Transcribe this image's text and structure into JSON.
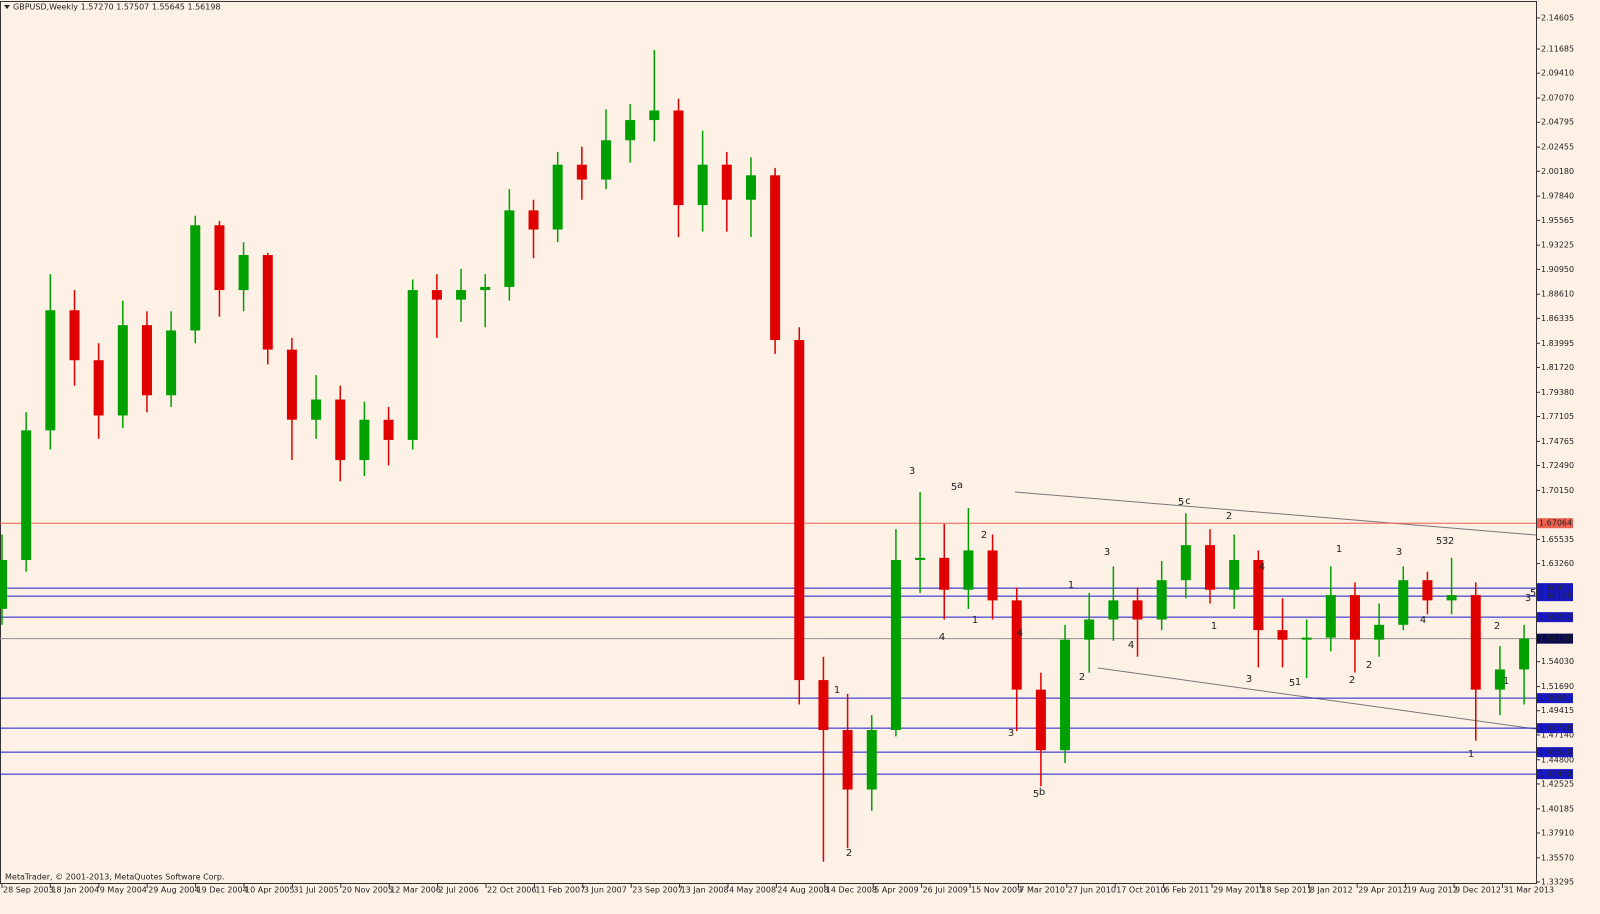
{
  "chart_data": {
    "type": "candlestick",
    "title": "GBPUSD,Weekly  1.57270 1.57507 1.55645 1.56198",
    "footer": "MetaTrader, © 2001-2013, MetaQuotes Software Corp.",
    "up_color": "#00a000",
    "down_color": "#e00000",
    "open": [
      1.59,
      1.636,
      1.758,
      1.871,
      1.824,
      1.772,
      1.857,
      1.791,
      1.852,
      1.951,
      1.89,
      1.923,
      1.834,
      1.768,
      1.787,
      1.73,
      1.768,
      1.749,
      1.89,
      1.881,
      1.89,
      1.893,
      1.965,
      1.947,
      2.008,
      1.994,
      2.031,
      2.05,
      2.059,
      1.97,
      2.008,
      1.975,
      1.998,
      1.843,
      1.523,
      1.476,
      1.42,
      1.476,
      1.636,
      1.638,
      1.608,
      1.645,
      1.598,
      1.514,
      1.457,
      1.561,
      1.58,
      1.598,
      1.58,
      1.617,
      1.65,
      1.608,
      1.636,
      1.57,
      1.561,
      1.563,
      1.603,
      1.561,
      1.575,
      1.617,
      1.598,
      1.603,
      1.514,
      1.533
    ],
    "high": [
      1.66,
      1.775,
      1.905,
      1.89,
      1.84,
      1.88,
      1.87,
      1.87,
      1.96,
      1.955,
      1.935,
      1.925,
      1.845,
      1.81,
      1.8,
      1.785,
      1.78,
      1.9,
      1.905,
      1.91,
      1.905,
      1.985,
      1.975,
      2.02,
      2.025,
      2.06,
      2.065,
      2.116,
      2.07,
      2.04,
      2.02,
      2.015,
      2.005,
      1.855,
      1.545,
      1.51,
      1.49,
      1.665,
      1.7,
      1.67,
      1.685,
      1.66,
      1.61,
      1.53,
      1.575,
      1.605,
      1.63,
      1.61,
      1.635,
      1.68,
      1.665,
      1.66,
      1.645,
      1.6,
      1.58,
      1.63,
      1.615,
      1.595,
      1.63,
      1.625,
      1.638,
      1.615,
      1.555,
      1.575
    ],
    "low": [
      1.575,
      1.625,
      1.74,
      1.8,
      1.75,
      1.76,
      1.775,
      1.78,
      1.84,
      1.865,
      1.87,
      1.82,
      1.73,
      1.75,
      1.71,
      1.715,
      1.725,
      1.74,
      1.845,
      1.86,
      1.855,
      1.88,
      1.92,
      1.935,
      1.975,
      1.985,
      2.01,
      2.03,
      1.94,
      1.945,
      1.945,
      1.94,
      1.83,
      1.5,
      1.352,
      1.365,
      1.4,
      1.47,
      1.605,
      1.58,
      1.59,
      1.58,
      1.475,
      1.423,
      1.445,
      1.53,
      1.56,
      1.545,
      1.57,
      1.6,
      1.595,
      1.59,
      1.535,
      1.535,
      1.525,
      1.55,
      1.53,
      1.545,
      1.57,
      1.585,
      1.585,
      1.466,
      1.49,
      1.5
    ],
    "close": [
      1.636,
      1.758,
      1.871,
      1.824,
      1.772,
      1.857,
      1.791,
      1.852,
      1.951,
      1.89,
      1.923,
      1.834,
      1.768,
      1.787,
      1.73,
      1.768,
      1.749,
      1.89,
      1.881,
      1.89,
      1.893,
      1.965,
      1.947,
      2.008,
      1.994,
      2.031,
      2.05,
      2.059,
      1.97,
      2.008,
      1.975,
      1.998,
      1.843,
      1.523,
      1.476,
      1.42,
      1.476,
      1.636,
      1.638,
      1.608,
      1.645,
      1.598,
      1.514,
      1.457,
      1.561,
      1.58,
      1.598,
      1.58,
      1.617,
      1.65,
      1.608,
      1.636,
      1.57,
      1.561,
      1.563,
      1.603,
      1.561,
      1.575,
      1.617,
      1.598,
      1.603,
      1.514,
      1.533,
      1.562
    ],
    "ylim": [
      1.3311,
      2.1611
    ],
    "yticks": [
      {
        "value": 2.14605,
        "label": "2.14605"
      },
      {
        "value": 2.11685,
        "label": "2.11685"
      },
      {
        "value": 2.0941,
        "label": "2.09410"
      },
      {
        "value": 2.0707,
        "label": "2.07070"
      },
      {
        "value": 2.04795,
        "label": "2.04795"
      },
      {
        "value": 2.02455,
        "label": "2.02455"
      },
      {
        "value": 2.0018,
        "label": "2.00180"
      },
      {
        "value": 1.9784,
        "label": "1.97840"
      },
      {
        "value": 1.95565,
        "label": "1.95565"
      },
      {
        "value": 1.93225,
        "label": "1.93225"
      },
      {
        "value": 1.9095,
        "label": "1.90950"
      },
      {
        "value": 1.8861,
        "label": "1.88610"
      },
      {
        "value": 1.86335,
        "label": "1.86335"
      },
      {
        "value": 1.83995,
        "label": "1.83995"
      },
      {
        "value": 1.8172,
        "label": "1.81720"
      },
      {
        "value": 1.7938,
        "label": "1.79380"
      },
      {
        "value": 1.77105,
        "label": "1.77105"
      },
      {
        "value": 1.74765,
        "label": "1.74765"
      },
      {
        "value": 1.7249,
        "label": "1.72490"
      },
      {
        "value": 1.7015,
        "label": "1.70150"
      },
      {
        "value": 1.65535,
        "label": "1.65535"
      },
      {
        "value": 1.6326,
        "label": "1.63260"
      },
      {
        "value": 1.5403,
        "label": "1.54030"
      },
      {
        "value": 1.5169,
        "label": "1.51690"
      },
      {
        "value": 1.49415,
        "label": "1.49415"
      },
      {
        "value": 1.4714,
        "label": "1.47140"
      },
      {
        "value": 1.448,
        "label": "1.44800"
      },
      {
        "value": 1.42525,
        "label": "1.42525"
      },
      {
        "value": 1.40185,
        "label": "1.40185"
      },
      {
        "value": 1.3791,
        "label": "1.37910"
      },
      {
        "value": 1.3557,
        "label": "1.35570"
      },
      {
        "value": 1.33295,
        "label": "1.33295"
      }
    ],
    "x_labels": [
      "28 Sep 2003",
      "18 Jan 2004",
      "9 May 2004",
      "29 Aug 2004",
      "19 Dec 2004",
      "10 Apr 2005",
      "31 Jul 2005",
      "20 Nov 2005",
      "12 Mar 2006",
      "2 Jul 2006",
      "22 Oct 2006",
      "11 Feb 2007",
      "3 Jun 2007",
      "23 Sep 2007",
      "13 Jan 2008",
      "4 May 2008",
      "24 Aug 2008",
      "14 Dec 2008",
      "5 Apr 2009",
      "26 Jul 2009",
      "15 Nov 2009",
      "7 Mar 2010",
      "27 Jun 2010",
      "17 Oct 2010",
      "6 Feb 2011",
      "29 May 2011",
      "18 Sep 2011",
      "8 Jan 2012",
      "29 Apr 2012",
      "19 Aug 2012",
      "9 Dec 2012",
      "31 Mar 2013"
    ],
    "levels": [
      {
        "value": 1.67064,
        "color": "#f06050"
      },
      {
        "value": 1.60951,
        "color": "#1818c8"
      },
      {
        "value": 1.60198,
        "color": "#1818c8"
      },
      {
        "value": 1.58222,
        "color": "#1818c8"
      },
      {
        "value": 1.56198,
        "color": "#909090"
      },
      {
        "value": 1.50601,
        "color": "#1818c8"
      },
      {
        "value": 1.47778,
        "color": "#1818c8"
      },
      {
        "value": 1.4552,
        "label": "1.45520",
        "color": "#1818c8"
      },
      {
        "value": 1.4345,
        "label": "1.43450",
        "color": "#1818c8"
      }
    ],
    "annotations": [
      "3",
      "5",
      "a",
      "2",
      "1",
      "4",
      "4",
      "3",
      "5",
      "b",
      "1",
      "2",
      "1",
      "2",
      "3",
      "4",
      "5",
      "c",
      "2",
      "1",
      "4",
      "3",
      "5",
      "1",
      "1",
      "2",
      "2",
      "3",
      "4",
      "5",
      "3",
      "2",
      "2",
      "1",
      "1",
      "3",
      "5"
    ]
  }
}
